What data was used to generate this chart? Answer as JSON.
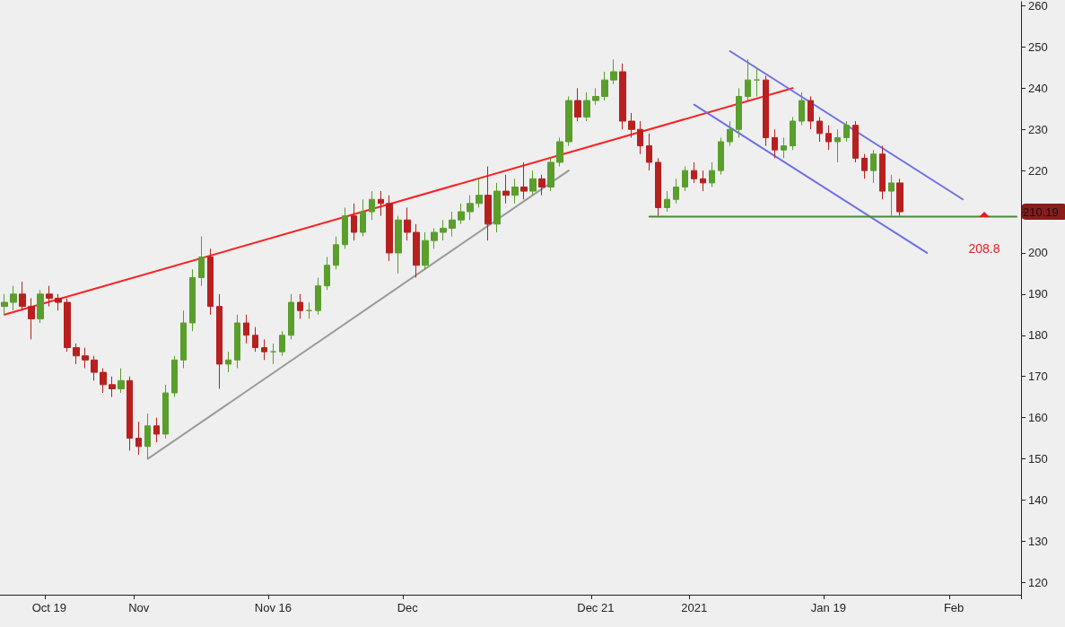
{
  "chart_data": {
    "type": "candlestick",
    "categories": [
      null,
      null,
      null,
      null,
      null,
      "Oct 19",
      null,
      null,
      null,
      null,
      null,
      null,
      null,
      null,
      null,
      "Nov",
      null,
      null,
      null,
      null,
      null,
      null,
      null,
      null,
      null,
      null,
      null,
      null,
      null,
      null,
      "Nov 16",
      null,
      null,
      null,
      null,
      null,
      null,
      null,
      null,
      null,
      null,
      null,
      null,
      null,
      null,
      "Dec",
      null,
      null,
      null,
      null,
      null,
      null,
      null,
      null,
      null,
      null,
      null,
      null,
      null,
      null,
      null,
      null,
      null,
      null,
      null,
      null,
      "Dec 21",
      null,
      null,
      null,
      null,
      null,
      null,
      null,
      null,
      null,
      null,
      "2021",
      null,
      null,
      null,
      null,
      null,
      null,
      null,
      null,
      null,
      null,
      null,
      null,
      null,
      null,
      "Jan 19",
      null,
      null,
      null,
      null,
      null,
      null,
      null,
      null,
      null,
      null,
      null,
      null,
      null,
      "Feb",
      null,
      null,
      null,
      null,
      null,
      null,
      null
    ],
    "ohlc": [
      [
        187,
        190,
        185,
        188
      ],
      [
        188,
        192,
        186,
        190
      ],
      [
        190,
        193,
        186,
        187
      ],
      [
        187,
        189,
        179,
        184
      ],
      [
        184,
        191,
        183,
        190
      ],
      [
        190,
        192,
        187,
        189
      ],
      [
        189,
        190,
        186,
        188
      ],
      [
        188,
        189,
        176,
        177
      ],
      [
        177,
        178,
        173,
        175
      ],
      [
        175,
        177,
        172,
        174
      ],
      [
        174,
        175,
        169,
        171
      ],
      [
        171,
        172,
        166,
        168
      ],
      [
        168,
        170,
        165,
        167
      ],
      [
        167,
        172,
        166,
        169
      ],
      [
        169,
        170,
        152,
        155
      ],
      [
        155,
        159,
        151,
        153
      ],
      [
        153,
        161,
        150,
        158
      ],
      [
        158,
        160,
        154,
        156
      ],
      [
        156,
        168,
        155,
        166
      ],
      [
        166,
        175,
        165,
        174
      ],
      [
        174,
        186,
        172,
        183
      ],
      [
        183,
        196,
        181,
        194
      ],
      [
        194,
        204,
        192,
        199
      ],
      [
        199,
        201,
        185,
        187
      ],
      [
        187,
        190,
        167,
        173
      ],
      [
        173,
        176,
        171,
        174
      ],
      [
        174,
        185,
        172,
        183
      ],
      [
        183,
        185,
        178,
        180
      ],
      [
        180,
        182,
        176,
        177
      ],
      [
        177,
        179,
        174,
        176
      ],
      [
        176,
        178,
        173,
        176
      ],
      [
        176,
        181,
        175,
        180
      ],
      [
        180,
        190,
        179,
        188
      ],
      [
        188,
        190,
        184,
        186
      ],
      [
        186,
        188,
        184,
        186
      ],
      [
        186,
        194,
        185,
        192
      ],
      [
        192,
        199,
        191,
        197
      ],
      [
        197,
        204,
        196,
        202
      ],
      [
        202,
        211,
        201,
        209
      ],
      [
        209,
        212,
        203,
        205
      ],
      [
        205,
        213,
        204,
        210
      ],
      [
        210,
        215,
        208,
        213
      ],
      [
        213,
        215,
        209,
        212
      ],
      [
        212,
        214,
        198,
        200
      ],
      [
        200,
        209,
        195,
        208
      ],
      [
        208,
        211,
        203,
        205
      ],
      [
        205,
        207,
        194,
        197
      ],
      [
        197,
        205,
        196,
        203
      ],
      [
        203,
        206,
        201,
        205
      ],
      [
        205,
        208,
        203,
        206
      ],
      [
        206,
        210,
        204,
        208
      ],
      [
        208,
        212,
        207,
        210
      ],
      [
        210,
        214,
        208,
        212
      ],
      [
        212,
        218,
        211,
        214
      ],
      [
        214,
        221,
        203,
        207
      ],
      [
        207,
        217,
        205,
        215
      ],
      [
        215,
        219,
        212,
        214
      ],
      [
        214,
        218,
        212,
        216
      ],
      [
        216,
        222,
        213,
        215
      ],
      [
        215,
        220,
        214,
        218
      ],
      [
        218,
        219,
        214,
        216
      ],
      [
        216,
        223,
        215,
        222
      ],
      [
        222,
        228,
        221,
        227
      ],
      [
        227,
        238,
        226,
        237
      ],
      [
        237,
        240,
        232,
        233
      ],
      [
        233,
        239,
        232,
        237
      ],
      [
        237,
        240,
        236,
        238
      ],
      [
        238,
        244,
        237,
        242
      ],
      [
        242,
        247,
        241,
        244
      ],
      [
        244,
        246,
        230,
        232
      ],
      [
        232,
        234,
        228,
        230
      ],
      [
        230,
        232,
        224,
        226
      ],
      [
        226,
        229,
        220,
        222
      ],
      [
        222,
        223,
        209,
        211
      ],
      [
        211,
        215,
        210,
        213
      ],
      [
        213,
        218,
        212,
        216
      ],
      [
        216,
        221,
        215,
        220
      ],
      [
        220,
        222,
        217,
        218
      ],
      [
        218,
        220,
        215,
        217
      ],
      [
        217,
        222,
        216,
        220
      ],
      [
        220,
        228,
        219,
        227
      ],
      [
        227,
        232,
        226,
        230
      ],
      [
        230,
        240,
        228,
        238
      ],
      [
        238,
        247,
        237,
        242
      ],
      [
        242,
        245,
        238,
        242
      ],
      [
        242,
        243,
        226,
        228
      ],
      [
        228,
        230,
        223,
        225
      ],
      [
        225,
        228,
        223,
        226
      ],
      [
        226,
        233,
        225,
        232
      ],
      [
        232,
        239,
        231,
        237
      ],
      [
        237,
        238,
        230,
        232
      ],
      [
        232,
        233,
        227,
        229
      ],
      [
        229,
        231,
        225,
        227
      ],
      [
        227,
        230,
        222,
        228
      ],
      [
        228,
        232,
        227,
        231
      ],
      [
        231,
        232,
        222,
        223
      ],
      [
        223,
        224,
        218,
        220
      ],
      [
        220,
        225,
        217,
        224
      ],
      [
        224,
        226,
        213,
        215
      ],
      [
        215,
        219,
        209,
        217
      ],
      [
        217,
        218,
        209,
        210
      ],
      null,
      null,
      null,
      null,
      null,
      null,
      null,
      null,
      null,
      null,
      null,
      null,
      null
    ],
    "series": [
      {
        "type": "line",
        "color": "#ff2020",
        "values": [
          185,
          null,
          null,
          null,
          null,
          null,
          null,
          null,
          null,
          null,
          null,
          null,
          null,
          null,
          null,
          null,
          null,
          null,
          null,
          null,
          null,
          null,
          null,
          null,
          null,
          null,
          null,
          null,
          null,
          null,
          null,
          null,
          null,
          null,
          null,
          null,
          null,
          null,
          null,
          null,
          null,
          null,
          null,
          null,
          null,
          null,
          null,
          null,
          null,
          null,
          null,
          null,
          null,
          null,
          null,
          null,
          null,
          null,
          null,
          null,
          null,
          null,
          null,
          null,
          null,
          null,
          null,
          null,
          null,
          null,
          null,
          null,
          null,
          null,
          null,
          null,
          null,
          null,
          null,
          null,
          null,
          null,
          null,
          null,
          null,
          null,
          null,
          null,
          240,
          null,
          null,
          null,
          null,
          null,
          null,
          null,
          null,
          null,
          null,
          null,
          null,
          null,
          null,
          null,
          null,
          null,
          null,
          null,
          null,
          null,
          null,
          null,
          null,
          null
        ]
      },
      {
        "type": "line",
        "color": "#999999",
        "values": [
          null,
          null,
          null,
          null,
          null,
          null,
          null,
          null,
          null,
          null,
          null,
          null,
          null,
          null,
          null,
          null,
          150,
          null,
          null,
          null,
          null,
          null,
          null,
          null,
          null,
          null,
          null,
          null,
          null,
          null,
          null,
          null,
          null,
          null,
          null,
          null,
          null,
          null,
          null,
          null,
          null,
          null,
          null,
          null,
          null,
          null,
          null,
          null,
          null,
          null,
          null,
          null,
          null,
          null,
          null,
          null,
          null,
          null,
          null,
          null,
          null,
          null,
          null,
          220,
          null,
          null,
          null,
          null,
          null,
          null,
          null,
          null,
          null,
          null,
          null,
          null,
          null,
          null,
          null,
          null,
          null,
          null,
          null,
          null,
          null,
          null,
          null,
          null,
          null,
          null,
          null,
          null,
          null,
          null,
          null,
          null,
          null,
          null,
          null,
          null,
          null,
          null,
          null,
          null,
          null,
          null,
          null,
          null,
          null,
          null,
          null,
          null,
          null,
          null
        ]
      },
      {
        "type": "line",
        "color": "#6f6fe8",
        "values": [
          null,
          null,
          null,
          null,
          null,
          null,
          null,
          null,
          null,
          null,
          null,
          null,
          null,
          null,
          null,
          null,
          null,
          null,
          null,
          null,
          null,
          null,
          null,
          null,
          null,
          null,
          null,
          null,
          null,
          null,
          null,
          null,
          null,
          null,
          null,
          null,
          null,
          null,
          null,
          null,
          null,
          null,
          null,
          null,
          null,
          null,
          null,
          null,
          null,
          null,
          null,
          null,
          null,
          null,
          null,
          null,
          null,
          null,
          null,
          null,
          null,
          null,
          null,
          null,
          null,
          null,
          null,
          null,
          null,
          null,
          null,
          null,
          null,
          null,
          null,
          null,
          null,
          null,
          null,
          null,
          null,
          249,
          null,
          null,
          null,
          null,
          null,
          null,
          null,
          null,
          null,
          null,
          null,
          null,
          null,
          null,
          null,
          null,
          null,
          null,
          null,
          null,
          null,
          null,
          null,
          null,
          null,
          213,
          null,
          null,
          null,
          null,
          null,
          null
        ]
      },
      {
        "type": "line",
        "color": "#6f6fe8",
        "values": [
          null,
          null,
          null,
          null,
          null,
          null,
          null,
          null,
          null,
          null,
          null,
          null,
          null,
          null,
          null,
          null,
          null,
          null,
          null,
          null,
          null,
          null,
          null,
          null,
          null,
          null,
          null,
          null,
          null,
          null,
          null,
          null,
          null,
          null,
          null,
          null,
          null,
          null,
          null,
          null,
          null,
          null,
          null,
          null,
          null,
          null,
          null,
          null,
          null,
          null,
          null,
          null,
          null,
          null,
          null,
          null,
          null,
          null,
          null,
          null,
          null,
          null,
          null,
          null,
          null,
          null,
          null,
          null,
          null,
          null,
          null,
          null,
          null,
          null,
          null,
          null,
          null,
          236,
          null,
          null,
          null,
          null,
          null,
          null,
          null,
          null,
          null,
          null,
          null,
          null,
          null,
          null,
          null,
          null,
          null,
          null,
          null,
          null,
          null,
          null,
          null,
          null,
          null,
          200,
          null,
          null,
          null,
          null,
          null,
          null,
          null,
          null,
          null,
          null
        ]
      },
      {
        "type": "line",
        "color": "#4a8a3a",
        "values": [
          null,
          null,
          null,
          null,
          null,
          null,
          null,
          null,
          null,
          null,
          null,
          null,
          null,
          null,
          null,
          null,
          null,
          null,
          null,
          null,
          null,
          null,
          null,
          null,
          null,
          null,
          null,
          null,
          null,
          null,
          null,
          null,
          null,
          null,
          null,
          null,
          null,
          null,
          null,
          null,
          null,
          null,
          null,
          null,
          null,
          null,
          null,
          null,
          null,
          null,
          null,
          null,
          null,
          null,
          null,
          null,
          null,
          null,
          null,
          null,
          null,
          null,
          null,
          null,
          null,
          null,
          null,
          null,
          null,
          null,
          null,
          null,
          208.8,
          null,
          null,
          null,
          null,
          null,
          null,
          null,
          null,
          null,
          null,
          null,
          null,
          null,
          null,
          null,
          null,
          null,
          null,
          null,
          null,
          null,
          null,
          null,
          null,
          null,
          null,
          null,
          null,
          null,
          null,
          null,
          null,
          null,
          null,
          null,
          null,
          null,
          null,
          null,
          null,
          208.8
        ]
      }
    ],
    "annotations": [
      "210.19",
      "208.8"
    ],
    "ylim": [
      117,
      261
    ],
    "yticks": [
      120,
      130,
      140,
      150,
      160,
      170,
      180,
      190,
      200,
      {
        "value": 210,
        "label": null
      },
      220,
      230,
      240,
      250,
      260
    ],
    "grid": false
  }
}
